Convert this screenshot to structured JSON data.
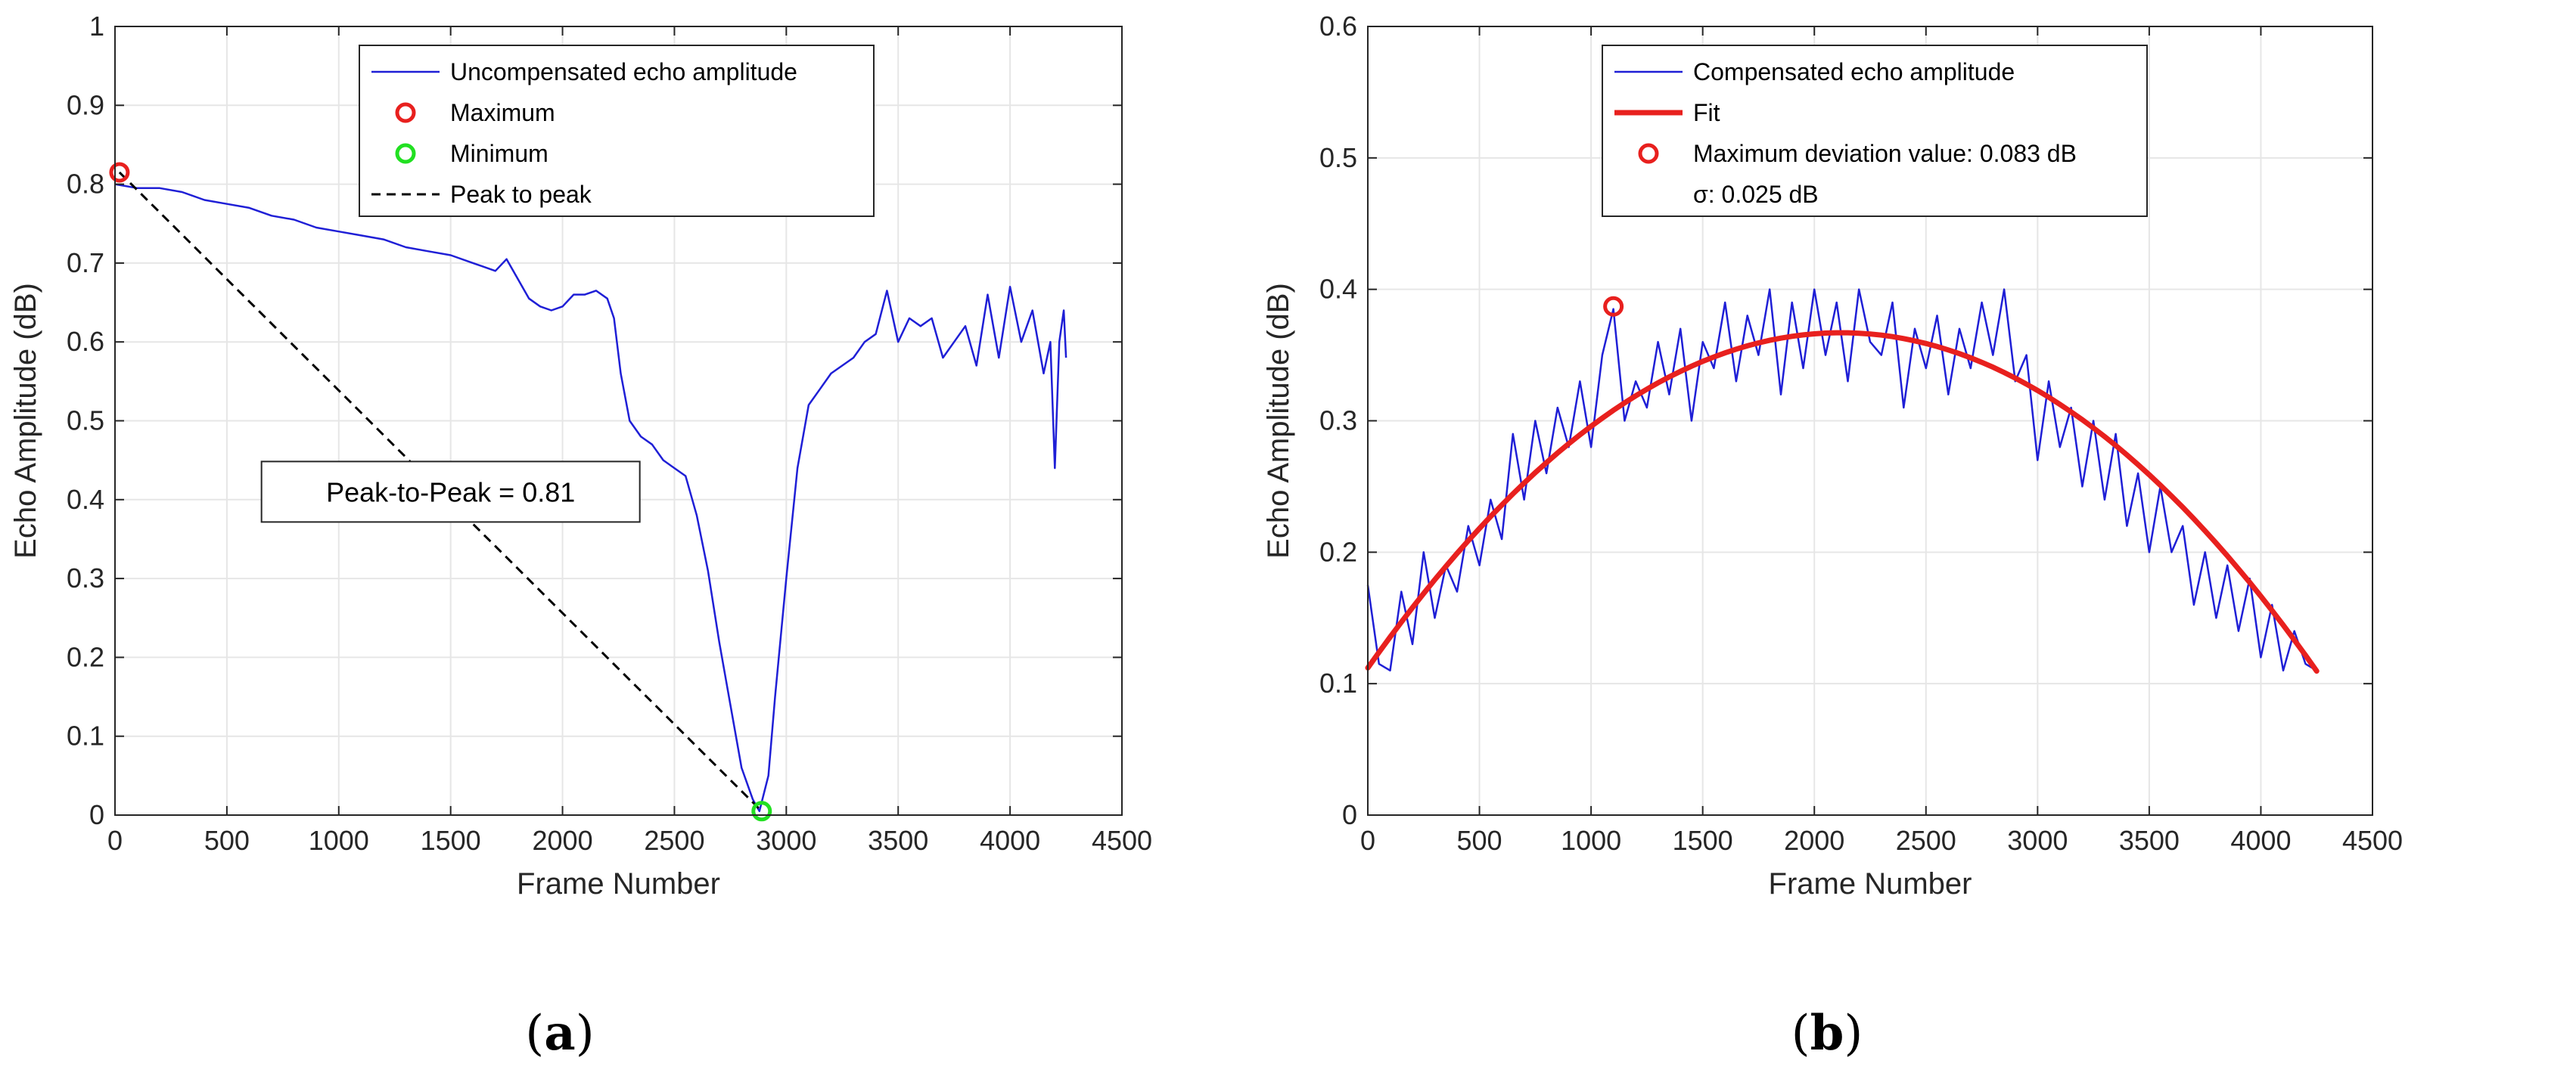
{
  "chart_data": [
    {
      "type": "line",
      "panel_label": "a",
      "xlabel": "Frame Number",
      "ylabel": "Echo Amplitude (dB)",
      "xlim": [
        0,
        4500
      ],
      "ylim": [
        0,
        1
      ],
      "xticks": [
        0,
        500,
        1000,
        1500,
        2000,
        2500,
        3000,
        3500,
        4000,
        4500
      ],
      "yticks": [
        0,
        0.1,
        0.2,
        0.3,
        0.4,
        0.5,
        0.6,
        0.7,
        0.8,
        0.9,
        1
      ],
      "grid": true,
      "legend_position": "top-center",
      "series": [
        {
          "name": "Uncompensated echo amplitude",
          "style": "line",
          "color": "#1f1fd6",
          "x": [
            0,
            100,
            200,
            300,
            400,
            500,
            600,
            700,
            800,
            900,
            1000,
            1100,
            1200,
            1300,
            1400,
            1500,
            1600,
            1700,
            1750,
            1800,
            1850,
            1900,
            1950,
            2000,
            2050,
            2100,
            2150,
            2200,
            2230,
            2260,
            2300,
            2350,
            2400,
            2450,
            2500,
            2550,
            2600,
            2650,
            2700,
            2750,
            2800,
            2850,
            2880,
            2920,
            2950,
            3000,
            3050,
            3100,
            3150,
            3200,
            3250,
            3300,
            3350,
            3400,
            3450,
            3500,
            3550,
            3600,
            3650,
            3700,
            3750,
            3800,
            3850,
            3900,
            3950,
            4000,
            4050,
            4100,
            4150,
            4180,
            4200,
            4220,
            4240,
            4250
          ],
          "y": [
            0.8,
            0.795,
            0.795,
            0.79,
            0.78,
            0.775,
            0.77,
            0.76,
            0.755,
            0.745,
            0.74,
            0.735,
            0.73,
            0.72,
            0.715,
            0.71,
            0.7,
            0.69,
            0.705,
            0.68,
            0.655,
            0.645,
            0.64,
            0.645,
            0.66,
            0.66,
            0.665,
            0.655,
            0.63,
            0.56,
            0.5,
            0.48,
            0.47,
            0.45,
            0.44,
            0.43,
            0.38,
            0.31,
            0.22,
            0.14,
            0.06,
            0.02,
            0.005,
            0.05,
            0.15,
            0.3,
            0.44,
            0.52,
            0.54,
            0.56,
            0.57,
            0.58,
            0.6,
            0.61,
            0.665,
            0.6,
            0.63,
            0.62,
            0.63,
            0.58,
            0.6,
            0.62,
            0.57,
            0.66,
            0.58,
            0.67,
            0.6,
            0.64,
            0.56,
            0.6,
            0.44,
            0.6,
            0.64,
            0.58
          ]
        },
        {
          "name": "Maximum",
          "style": "marker",
          "color": "#e8201e",
          "x": [
            20
          ],
          "y": [
            0.815
          ]
        },
        {
          "name": "Minimum",
          "style": "marker",
          "color": "#22e022",
          "x": [
            2890
          ],
          "y": [
            0.005
          ]
        },
        {
          "name": "Peak to peak",
          "style": "dashed",
          "color": "#000000",
          "x": [
            20,
            2890
          ],
          "y": [
            0.815,
            0.005
          ]
        }
      ],
      "annotation": {
        "text": "Peak-to-Peak = 0.81",
        "x": 1500,
        "y": 0.41
      }
    },
    {
      "type": "line",
      "panel_label": "b",
      "xlabel": "Frame Number",
      "ylabel": "Echo Amplitude (dB)",
      "xlim": [
        0,
        4500
      ],
      "ylim": [
        0,
        0.6
      ],
      "xticks": [
        0,
        500,
        1000,
        1500,
        2000,
        2500,
        3000,
        3500,
        4000,
        4500
      ],
      "yticks": [
        0,
        0.1,
        0.2,
        0.3,
        0.4,
        0.5,
        0.6
      ],
      "grid": true,
      "legend_position": "top-center",
      "series": [
        {
          "name": "Compensated echo amplitude",
          "style": "line",
          "color": "#1f1fd6",
          "x": [
            0,
            50,
            100,
            150,
            200,
            250,
            300,
            350,
            400,
            450,
            500,
            550,
            600,
            650,
            700,
            750,
            800,
            850,
            900,
            950,
            1000,
            1050,
            1100,
            1150,
            1200,
            1250,
            1300,
            1350,
            1400,
            1450,
            1500,
            1550,
            1600,
            1650,
            1700,
            1750,
            1800,
            1850,
            1900,
            1950,
            2000,
            2050,
            2100,
            2150,
            2200,
            2250,
            2300,
            2350,
            2400,
            2450,
            2500,
            2550,
            2600,
            2650,
            2700,
            2750,
            2800,
            2850,
            2900,
            2950,
            3000,
            3050,
            3100,
            3150,
            3200,
            3250,
            3300,
            3350,
            3400,
            3450,
            3500,
            3550,
            3600,
            3650,
            3700,
            3750,
            3800,
            3850,
            3900,
            3950,
            4000,
            4050,
            4100,
            4150,
            4200,
            4250
          ],
          "y": [
            0.175,
            0.115,
            0.11,
            0.17,
            0.13,
            0.2,
            0.15,
            0.19,
            0.17,
            0.22,
            0.19,
            0.24,
            0.21,
            0.29,
            0.24,
            0.3,
            0.26,
            0.31,
            0.28,
            0.33,
            0.28,
            0.35,
            0.385,
            0.3,
            0.33,
            0.31,
            0.36,
            0.32,
            0.37,
            0.3,
            0.36,
            0.34,
            0.39,
            0.33,
            0.38,
            0.35,
            0.4,
            0.32,
            0.39,
            0.34,
            0.4,
            0.35,
            0.39,
            0.33,
            0.4,
            0.36,
            0.35,
            0.39,
            0.31,
            0.37,
            0.34,
            0.38,
            0.32,
            0.37,
            0.34,
            0.39,
            0.35,
            0.4,
            0.33,
            0.35,
            0.27,
            0.33,
            0.28,
            0.31,
            0.25,
            0.3,
            0.24,
            0.29,
            0.22,
            0.26,
            0.2,
            0.25,
            0.2,
            0.22,
            0.16,
            0.2,
            0.15,
            0.19,
            0.14,
            0.18,
            0.12,
            0.16,
            0.11,
            0.14,
            0.115,
            0.11
          ]
        },
        {
          "name": "Fit",
          "style": "thick-line",
          "color": "#e8201e",
          "quadratic_fit": {
            "vertex_x": 2120,
            "vertex_y": 0.367,
            "y_at_0": 0.112
          },
          "x_range": [
            0,
            4250
          ]
        },
        {
          "name": "Maximum deviation value: 0.083 dB",
          "style": "marker",
          "color": "#e8201e",
          "x": [
            1100
          ],
          "y": [
            0.387
          ]
        }
      ],
      "legend_extra": "σ: 0.025 dB"
    }
  ],
  "captions": [
    "(a)",
    "(b)"
  ],
  "caption_letters": [
    "a",
    "b"
  ]
}
